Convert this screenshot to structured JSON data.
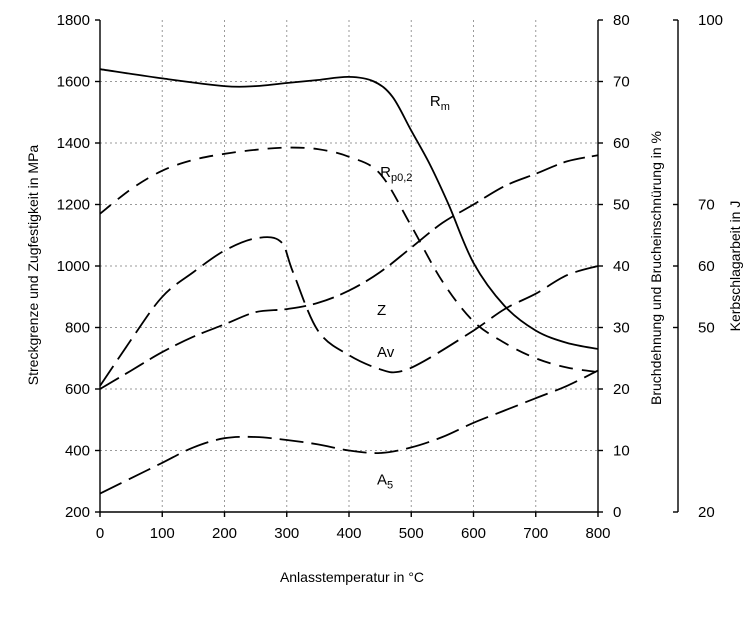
{
  "chart_data": {
    "type": "line",
    "xlabel": "Anlasstemperatur in °C",
    "ylabel_left": "Streckgrenze und Zugfestigkeit in MPa",
    "ylabel_right1": "Bruchdehnung und Brucheinschnürung in %",
    "ylabel_right2": "Kerbschlagarbeit in J",
    "xlim": [
      0,
      800
    ],
    "ylim_left": [
      200,
      1800
    ],
    "ylim_right1": [
      0,
      80
    ],
    "ylim_right2": [
      20,
      100
    ],
    "xticks": [
      "0",
      "100",
      "200",
      "300",
      "400",
      "500",
      "600",
      "700",
      "800"
    ],
    "yticks_left": [
      "200",
      "400",
      "600",
      "800",
      "1000",
      "1200",
      "1400",
      "1600",
      "1800"
    ],
    "yticks_right1": [
      "0",
      "10",
      "20",
      "30",
      "40",
      "50",
      "60",
      "70",
      "80"
    ],
    "yticks_right2": [
      "20",
      "50",
      "60",
      "70",
      "100"
    ],
    "grid": true,
    "series": [
      {
        "name": "Rm",
        "label_main": "R",
        "label_sub": "m",
        "axis": "left",
        "dash": "solid",
        "label_pos": [
          530,
          1520
        ],
        "x": [
          0,
          100,
          200,
          250,
          300,
          350,
          400,
          440,
          470,
          500,
          530,
          560,
          600,
          650,
          700,
          750,
          800
        ],
        "y": [
          1640,
          1610,
          1585,
          1585,
          1595,
          1605,
          1615,
          1600,
          1550,
          1440,
          1330,
          1200,
          1010,
          870,
          790,
          750,
          730
        ]
      },
      {
        "name": "Rp0,2",
        "label_main": "R",
        "label_sub": "p0,2",
        "axis": "left",
        "dash": "14 9",
        "label_pos": [
          450,
          1290
        ],
        "x": [
          0,
          50,
          100,
          150,
          200,
          250,
          300,
          350,
          400,
          450,
          500,
          550,
          600,
          650,
          700,
          750,
          800
        ],
        "y": [
          1170,
          1250,
          1310,
          1345,
          1365,
          1378,
          1385,
          1380,
          1355,
          1300,
          1130,
          950,
          820,
          750,
          700,
          670,
          655
        ]
      },
      {
        "name": "Z",
        "label_main": "Z",
        "label_sub": "",
        "axis": "right1",
        "dash": "22 7",
        "label_pos": [
          445,
          32
        ],
        "x": [
          0,
          50,
          100,
          150,
          200,
          250,
          300,
          350,
          400,
          450,
          500,
          550,
          600,
          650,
          700,
          750,
          800
        ],
        "y": [
          20,
          23,
          26,
          28.5,
          30.5,
          32.5,
          33,
          34,
          36,
          39,
          43,
          47,
          50,
          53,
          55,
          57,
          58
        ]
      },
      {
        "name": "Av",
        "label_main": "Av",
        "label_sub": "",
        "axis": "right2",
        "dash": "24 8",
        "label_pos": [
          445,
          45.2
        ],
        "x": [
          0,
          50,
          100,
          150,
          200,
          250,
          290,
          310,
          350,
          400,
          450,
          480,
          520,
          600,
          650,
          700,
          750,
          800
        ],
        "y": [
          40.5,
          48,
          55,
          59,
          62.5,
          64.5,
          64,
          59,
          49.5,
          45.5,
          43.2,
          42.8,
          44.5,
          49.5,
          53,
          55.5,
          58.5,
          60
        ]
      },
      {
        "name": "A5",
        "label_main": "A",
        "label_sub": "5",
        "axis": "right1",
        "dash": "24 8",
        "label_pos": [
          445,
          4.5
        ],
        "x": [
          0,
          50,
          100,
          150,
          200,
          250,
          300,
          350,
          400,
          450,
          500,
          550,
          600,
          650,
          700,
          750,
          800
        ],
        "y": [
          3,
          5.5,
          8,
          10.5,
          12,
          12.2,
          11.7,
          11,
          10,
          9.6,
          10.5,
          12.2,
          14.5,
          16.5,
          18.5,
          20.5,
          23
        ]
      }
    ]
  }
}
